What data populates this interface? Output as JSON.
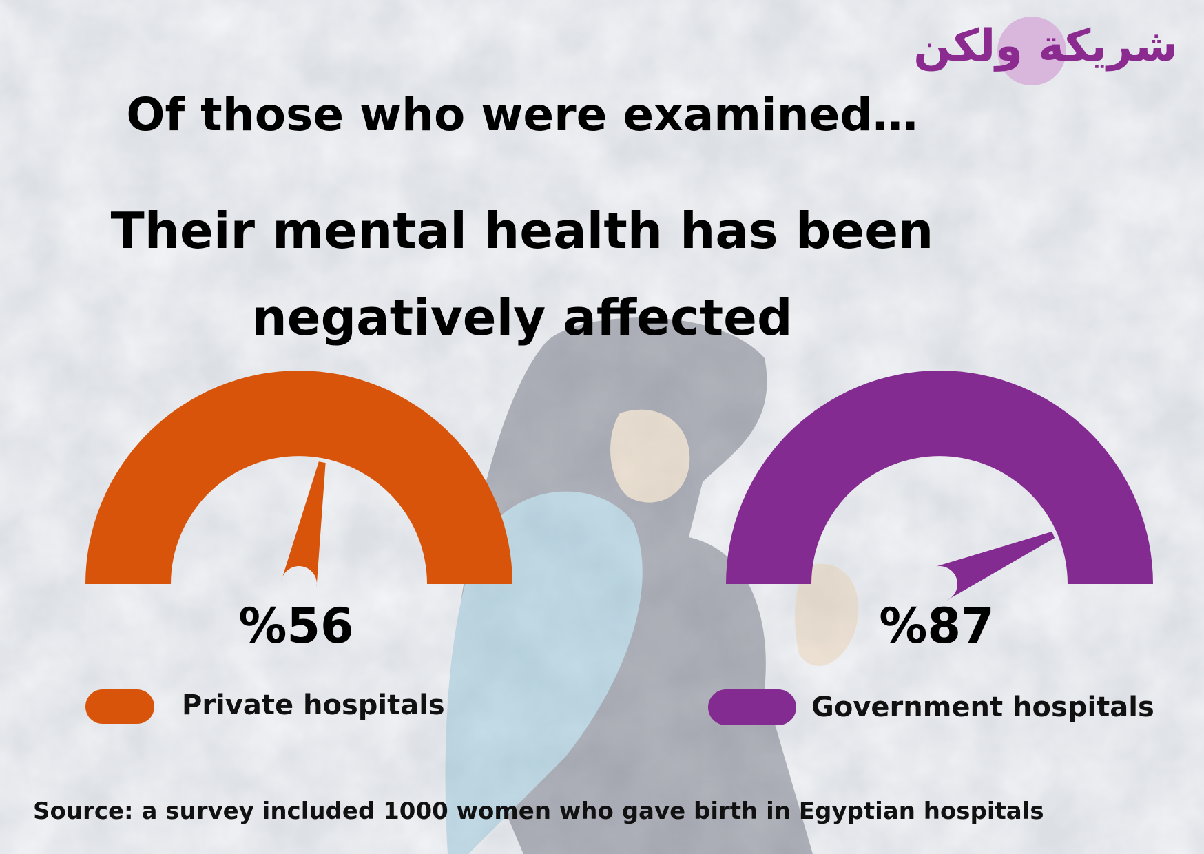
{
  "header": {
    "line1": "Of those who were examined…",
    "line2": "Their mental health has been",
    "line3": "negatively affected"
  },
  "logo": {
    "text": "شريكة ولكن",
    "color": "#8b2b8f",
    "circle_color": "#d9b6dc"
  },
  "chart_data": {
    "type": "gauge",
    "range": [
      0,
      100
    ],
    "series": [
      {
        "name": "Private hospitals",
        "value": 56,
        "label": "%56",
        "color": "#d9540b"
      },
      {
        "name": "Government hospitals",
        "value": 87,
        "label": "%87",
        "color": "#842b91"
      }
    ]
  },
  "source": "Source: a survey included 1000 women who gave birth in Egyptian hospitals"
}
